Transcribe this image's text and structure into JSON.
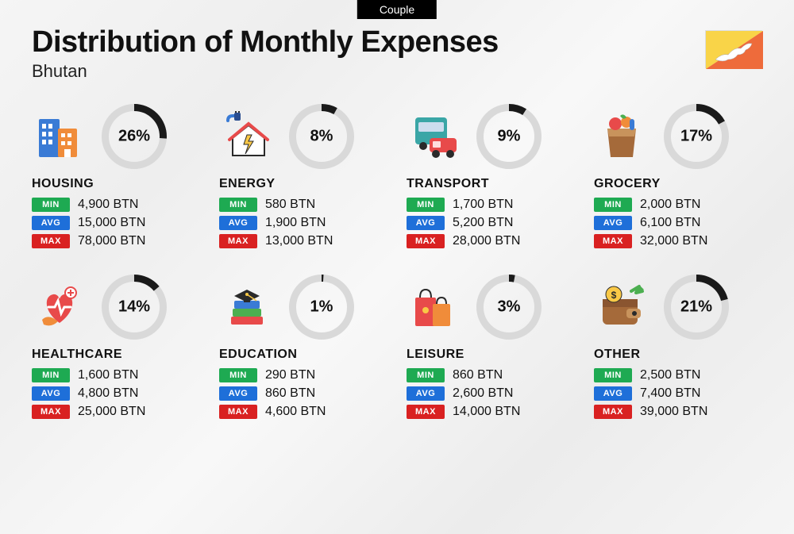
{
  "badge": "Couple",
  "title": "Distribution of Monthly Expenses",
  "country": "Bhutan",
  "currency": "BTN",
  "flag": {
    "colors": {
      "upper": "#f9d448",
      "lower": "#ee6b3b",
      "dragon": "#ffffff"
    }
  },
  "labels": {
    "min": "MIN",
    "avg": "AVG",
    "max": "MAX"
  },
  "badge_colors": {
    "min": "#1eaa52",
    "avg": "#1e6fd9",
    "max": "#d92121"
  },
  "ring": {
    "size": 82,
    "stroke": 9,
    "track_color": "#d9d9d9",
    "progress_color": "#1a1a1a"
  },
  "categories": [
    {
      "key": "housing",
      "name": "HOUSING",
      "pct": 26,
      "min": "4,900",
      "avg": "15,000",
      "max": "78,000",
      "icon": "buildings"
    },
    {
      "key": "energy",
      "name": "ENERGY",
      "pct": 8,
      "min": "580",
      "avg": "1,900",
      "max": "13,000",
      "icon": "energy-house"
    },
    {
      "key": "transport",
      "name": "TRANSPORT",
      "pct": 9,
      "min": "1,700",
      "avg": "5,200",
      "max": "28,000",
      "icon": "bus-car"
    },
    {
      "key": "grocery",
      "name": "GROCERY",
      "pct": 17,
      "min": "2,000",
      "avg": "6,100",
      "max": "32,000",
      "icon": "grocery-bag"
    },
    {
      "key": "healthcare",
      "name": "HEALTHCARE",
      "pct": 14,
      "min": "1,600",
      "avg": "4,800",
      "max": "25,000",
      "icon": "heart-care"
    },
    {
      "key": "education",
      "name": "EDUCATION",
      "pct": 1,
      "min": "290",
      "avg": "860",
      "max": "4,600",
      "icon": "grad-books"
    },
    {
      "key": "leisure",
      "name": "LEISURE",
      "pct": 3,
      "min": "860",
      "avg": "2,600",
      "max": "14,000",
      "icon": "shopping-bags"
    },
    {
      "key": "other",
      "name": "OTHER",
      "pct": 21,
      "min": "2,500",
      "avg": "7,400",
      "max": "39,000",
      "icon": "wallet-coin"
    }
  ],
  "icon_palette": {
    "blue": "#3a7bd5",
    "darkblue": "#2a4d8f",
    "orange": "#f08c3a",
    "red": "#e84a4a",
    "green": "#4caf50",
    "yellow": "#f9c846",
    "brown": "#a56a3a",
    "teal": "#3aa6a6",
    "pink": "#e85a8a",
    "purple": "#5a4a9a",
    "dark": "#2a2a2a"
  }
}
